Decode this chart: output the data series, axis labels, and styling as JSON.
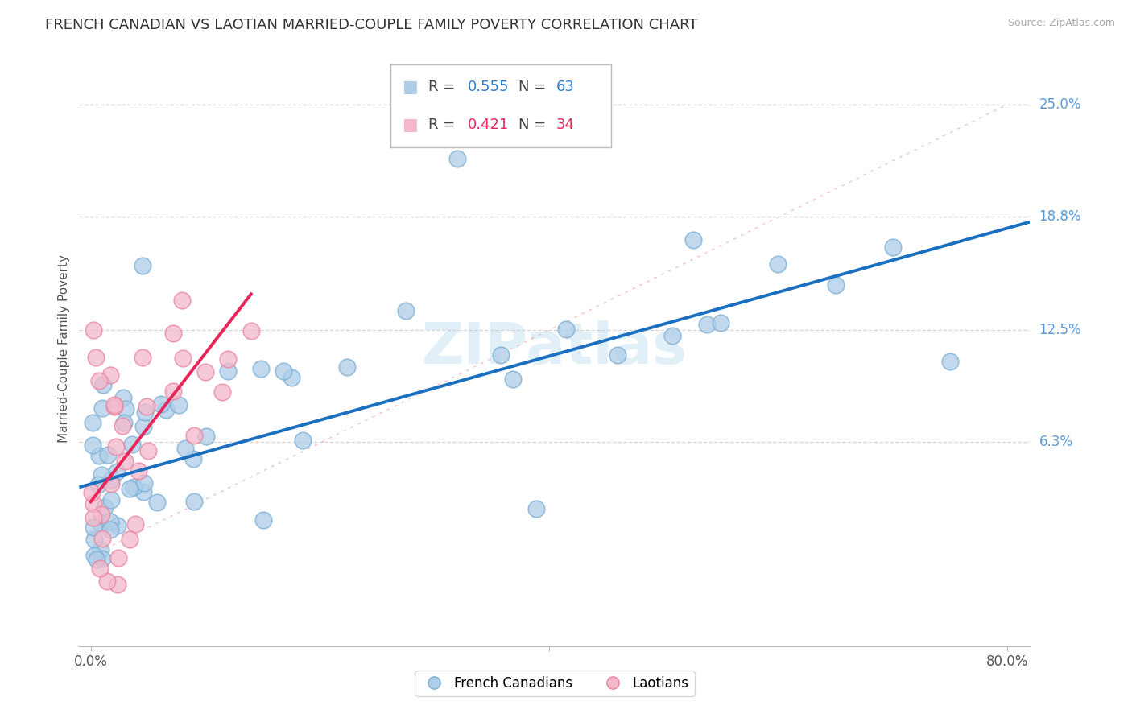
{
  "title": "FRENCH CANADIAN VS LAOTIAN MARRIED-COUPLE FAMILY POVERTY CORRELATION CHART",
  "source": "Source: ZipAtlas.com",
  "ylabel": "Married-Couple Family Poverty",
  "xlim": [
    -1.0,
    82.0
  ],
  "ylim": [
    -5.0,
    28.0
  ],
  "ytick_positions": [
    6.3,
    12.5,
    18.8,
    25.0
  ],
  "ytick_labels": [
    "6.3%",
    "12.5%",
    "18.8%",
    "25.0%"
  ],
  "legend_labels": [
    "French Canadians",
    "Laotians"
  ],
  "blue_scatter_color": "#aecde8",
  "blue_scatter_edge": "#7bafd4",
  "pink_scatter_color": "#f4b8cb",
  "pink_scatter_edge": "#e8849e",
  "blue_line_color": "#1a6fbe",
  "pink_line_color": "#e8265a",
  "diag_line_color": "#f0a0b0",
  "watermark": "ZIPatlas",
  "watermark_color": "#ddeef8",
  "blue_trend_x0": -1.0,
  "blue_trend_x1": 82.0,
  "blue_trend_y0": 3.8,
  "blue_trend_y1": 18.5,
  "pink_trend_x0": 0.0,
  "pink_trend_x1": 14.0,
  "pink_trend_y0": 3.0,
  "pink_trend_y1": 14.5,
  "title_fontsize": 13,
  "axis_label_fontsize": 11,
  "tick_fontsize": 12,
  "background_color": "#ffffff",
  "grid_color": "#cccccc",
  "fc_seed": 42,
  "la_seed": 7
}
